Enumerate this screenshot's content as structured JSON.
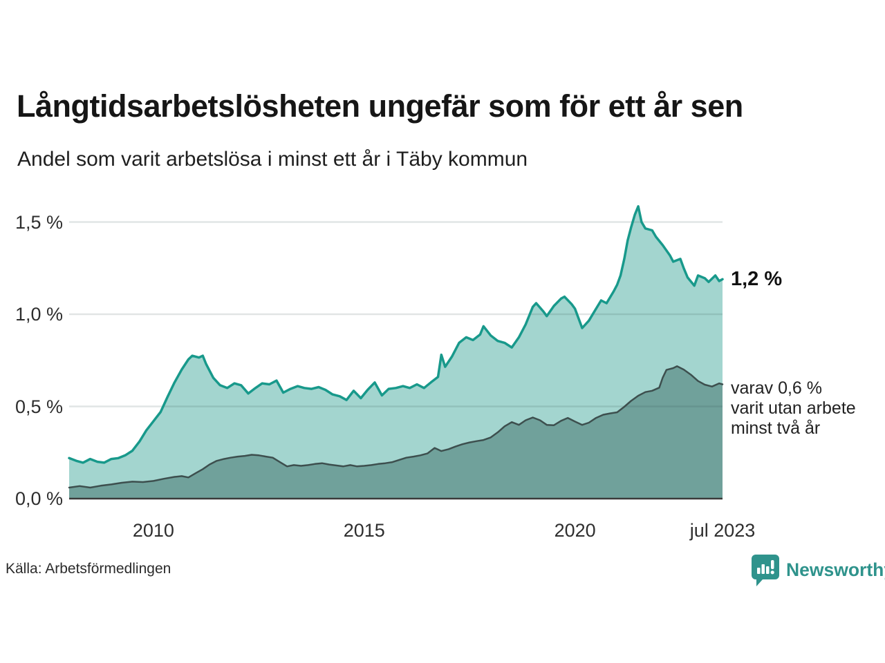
{
  "header": {
    "title": "Långtidsarbetslösheten ungefär som för ett år sen",
    "subtitle": "Andel som varit arbetslösa i minst ett år i Täby kommun"
  },
  "annotations": {
    "total_label": "1,2 %",
    "subset_lines": [
      "varav 0,6 %",
      "varit utan arbete",
      "minst två år"
    ]
  },
  "footer": {
    "source": "Källa: Arbetsförmedlingen",
    "brand_name": "Newsworthy"
  },
  "colors": {
    "accent_teal": "#18998b",
    "light_fill": "#a3d5cf",
    "dark_fill": "#70a19b",
    "dark_line": "#3d4f4e",
    "gridline": "rgba(40,70,70,0.14)",
    "axis_line": "#3a3a3a",
    "brand_teal": "#2f938c"
  },
  "chart_data": {
    "type": "area",
    "x_unit": "decimal_year",
    "xlim": [
      2008.0,
      2023.5
    ],
    "ylim": [
      0,
      1.65
    ],
    "grid": "horizontal",
    "legend": "none",
    "y_ticks": [
      {
        "v": 0.0,
        "label": "0,0 %"
      },
      {
        "v": 0.5,
        "label": "0,5 %"
      },
      {
        "v": 1.0,
        "label": "1,0 %"
      },
      {
        "v": 1.5,
        "label": "1,5 %"
      }
    ],
    "x_ticks": [
      {
        "v": 2010,
        "label": "2010"
      },
      {
        "v": 2015,
        "label": "2015"
      },
      {
        "v": 2020,
        "label": "2020"
      },
      {
        "v": 2023.5,
        "label": "jul 2023"
      }
    ],
    "series": [
      {
        "name": "Andel arbetslösa minst ett år",
        "line_color": "#18998b",
        "fill_color": "#a3d5cf",
        "line_width": 3.5,
        "last_value_label": "1,2 %",
        "points": [
          [
            2008.0,
            0.22
          ],
          [
            2008.17,
            0.205
          ],
          [
            2008.33,
            0.195
          ],
          [
            2008.5,
            0.215
          ],
          [
            2008.67,
            0.2
          ],
          [
            2008.83,
            0.195
          ],
          [
            2009.0,
            0.215
          ],
          [
            2009.17,
            0.22
          ],
          [
            2009.33,
            0.235
          ],
          [
            2009.5,
            0.26
          ],
          [
            2009.67,
            0.31
          ],
          [
            2009.83,
            0.37
          ],
          [
            2010.0,
            0.42
          ],
          [
            2010.17,
            0.47
          ],
          [
            2010.33,
            0.55
          ],
          [
            2010.5,
            0.63
          ],
          [
            2010.67,
            0.7
          ],
          [
            2010.83,
            0.755
          ],
          [
            2010.92,
            0.775
          ],
          [
            2011.08,
            0.765
          ],
          [
            2011.17,
            0.775
          ],
          [
            2011.25,
            0.73
          ],
          [
            2011.42,
            0.655
          ],
          [
            2011.58,
            0.615
          ],
          [
            2011.75,
            0.6
          ],
          [
            2011.92,
            0.625
          ],
          [
            2012.08,
            0.615
          ],
          [
            2012.25,
            0.57
          ],
          [
            2012.42,
            0.6
          ],
          [
            2012.58,
            0.625
          ],
          [
            2012.75,
            0.62
          ],
          [
            2012.92,
            0.64
          ],
          [
            2013.08,
            0.575
          ],
          [
            2013.25,
            0.595
          ],
          [
            2013.42,
            0.61
          ],
          [
            2013.58,
            0.6
          ],
          [
            2013.75,
            0.595
          ],
          [
            2013.92,
            0.605
          ],
          [
            2014.08,
            0.59
          ],
          [
            2014.25,
            0.565
          ],
          [
            2014.42,
            0.555
          ],
          [
            2014.58,
            0.535
          ],
          [
            2014.75,
            0.585
          ],
          [
            2014.92,
            0.545
          ],
          [
            2015.08,
            0.59
          ],
          [
            2015.25,
            0.63
          ],
          [
            2015.42,
            0.56
          ],
          [
            2015.58,
            0.595
          ],
          [
            2015.75,
            0.6
          ],
          [
            2015.92,
            0.61
          ],
          [
            2016.08,
            0.6
          ],
          [
            2016.25,
            0.62
          ],
          [
            2016.42,
            0.6
          ],
          [
            2016.58,
            0.63
          ],
          [
            2016.75,
            0.66
          ],
          [
            2016.83,
            0.78
          ],
          [
            2016.92,
            0.715
          ],
          [
            2017.08,
            0.77
          ],
          [
            2017.25,
            0.845
          ],
          [
            2017.42,
            0.875
          ],
          [
            2017.58,
            0.86
          ],
          [
            2017.75,
            0.89
          ],
          [
            2017.83,
            0.935
          ],
          [
            2018.0,
            0.885
          ],
          [
            2018.17,
            0.855
          ],
          [
            2018.33,
            0.845
          ],
          [
            2018.5,
            0.82
          ],
          [
            2018.67,
            0.875
          ],
          [
            2018.83,
            0.945
          ],
          [
            2019.0,
            1.04
          ],
          [
            2019.08,
            1.06
          ],
          [
            2019.25,
            1.015
          ],
          [
            2019.33,
            0.99
          ],
          [
            2019.5,
            1.045
          ],
          [
            2019.67,
            1.085
          ],
          [
            2019.75,
            1.095
          ],
          [
            2019.92,
            1.055
          ],
          [
            2020.0,
            1.03
          ],
          [
            2020.17,
            0.925
          ],
          [
            2020.33,
            0.965
          ],
          [
            2020.5,
            1.03
          ],
          [
            2020.62,
            1.075
          ],
          [
            2020.75,
            1.06
          ],
          [
            2020.92,
            1.125
          ],
          [
            2021.0,
            1.16
          ],
          [
            2021.08,
            1.21
          ],
          [
            2021.17,
            1.3
          ],
          [
            2021.25,
            1.4
          ],
          [
            2021.33,
            1.47
          ],
          [
            2021.42,
            1.54
          ],
          [
            2021.5,
            1.585
          ],
          [
            2021.58,
            1.5
          ],
          [
            2021.67,
            1.465
          ],
          [
            2021.83,
            1.455
          ],
          [
            2021.92,
            1.42
          ],
          [
            2022.08,
            1.375
          ],
          [
            2022.25,
            1.32
          ],
          [
            2022.33,
            1.285
          ],
          [
            2022.5,
            1.3
          ],
          [
            2022.58,
            1.25
          ],
          [
            2022.67,
            1.2
          ],
          [
            2022.83,
            1.155
          ],
          [
            2022.92,
            1.21
          ],
          [
            2023.08,
            1.195
          ],
          [
            2023.17,
            1.175
          ],
          [
            2023.33,
            1.21
          ],
          [
            2023.42,
            1.18
          ],
          [
            2023.5,
            1.19
          ]
        ]
      },
      {
        "name": "Varav utan arbete minst två år",
        "line_color": "#3d4f4e",
        "fill_color": "#70a19b",
        "line_width": 2.5,
        "last_value_label": "0,6 %",
        "points": [
          [
            2008.0,
            0.06
          ],
          [
            2008.25,
            0.068
          ],
          [
            2008.5,
            0.06
          ],
          [
            2008.75,
            0.07
          ],
          [
            2009.0,
            0.077
          ],
          [
            2009.25,
            0.086
          ],
          [
            2009.5,
            0.092
          ],
          [
            2009.75,
            0.09
          ],
          [
            2010.0,
            0.096
          ],
          [
            2010.25,
            0.108
          ],
          [
            2010.5,
            0.118
          ],
          [
            2010.67,
            0.122
          ],
          [
            2010.83,
            0.115
          ],
          [
            2011.0,
            0.138
          ],
          [
            2011.17,
            0.16
          ],
          [
            2011.33,
            0.185
          ],
          [
            2011.5,
            0.205
          ],
          [
            2011.67,
            0.215
          ],
          [
            2011.83,
            0.222
          ],
          [
            2012.0,
            0.228
          ],
          [
            2012.17,
            0.232
          ],
          [
            2012.33,
            0.238
          ],
          [
            2012.5,
            0.235
          ],
          [
            2012.67,
            0.228
          ],
          [
            2012.83,
            0.222
          ],
          [
            2013.0,
            0.198
          ],
          [
            2013.17,
            0.175
          ],
          [
            2013.33,
            0.182
          ],
          [
            2013.5,
            0.178
          ],
          [
            2013.67,
            0.182
          ],
          [
            2013.83,
            0.188
          ],
          [
            2014.0,
            0.192
          ],
          [
            2014.17,
            0.185
          ],
          [
            2014.33,
            0.18
          ],
          [
            2014.5,
            0.175
          ],
          [
            2014.67,
            0.182
          ],
          [
            2014.83,
            0.175
          ],
          [
            2015.0,
            0.178
          ],
          [
            2015.17,
            0.182
          ],
          [
            2015.33,
            0.188
          ],
          [
            2015.5,
            0.192
          ],
          [
            2015.67,
            0.198
          ],
          [
            2015.83,
            0.21
          ],
          [
            2016.0,
            0.222
          ],
          [
            2016.17,
            0.228
          ],
          [
            2016.33,
            0.235
          ],
          [
            2016.5,
            0.245
          ],
          [
            2016.67,
            0.275
          ],
          [
            2016.83,
            0.258
          ],
          [
            2017.0,
            0.268
          ],
          [
            2017.17,
            0.283
          ],
          [
            2017.33,
            0.295
          ],
          [
            2017.5,
            0.305
          ],
          [
            2017.67,
            0.312
          ],
          [
            2017.83,
            0.318
          ],
          [
            2018.0,
            0.332
          ],
          [
            2018.17,
            0.36
          ],
          [
            2018.33,
            0.392
          ],
          [
            2018.5,
            0.415
          ],
          [
            2018.67,
            0.4
          ],
          [
            2018.83,
            0.425
          ],
          [
            2019.0,
            0.44
          ],
          [
            2019.17,
            0.425
          ],
          [
            2019.33,
            0.4
          ],
          [
            2019.5,
            0.398
          ],
          [
            2019.67,
            0.422
          ],
          [
            2019.83,
            0.438
          ],
          [
            2020.0,
            0.418
          ],
          [
            2020.17,
            0.4
          ],
          [
            2020.33,
            0.412
          ],
          [
            2020.5,
            0.438
          ],
          [
            2020.67,
            0.455
          ],
          [
            2020.83,
            0.462
          ],
          [
            2021.0,
            0.468
          ],
          [
            2021.17,
            0.498
          ],
          [
            2021.33,
            0.53
          ],
          [
            2021.5,
            0.558
          ],
          [
            2021.67,
            0.578
          ],
          [
            2021.83,
            0.585
          ],
          [
            2022.0,
            0.602
          ],
          [
            2022.08,
            0.655
          ],
          [
            2022.17,
            0.698
          ],
          [
            2022.33,
            0.708
          ],
          [
            2022.42,
            0.718
          ],
          [
            2022.58,
            0.7
          ],
          [
            2022.75,
            0.672
          ],
          [
            2022.92,
            0.638
          ],
          [
            2023.08,
            0.618
          ],
          [
            2023.25,
            0.608
          ],
          [
            2023.42,
            0.625
          ],
          [
            2023.5,
            0.62
          ]
        ]
      }
    ]
  }
}
